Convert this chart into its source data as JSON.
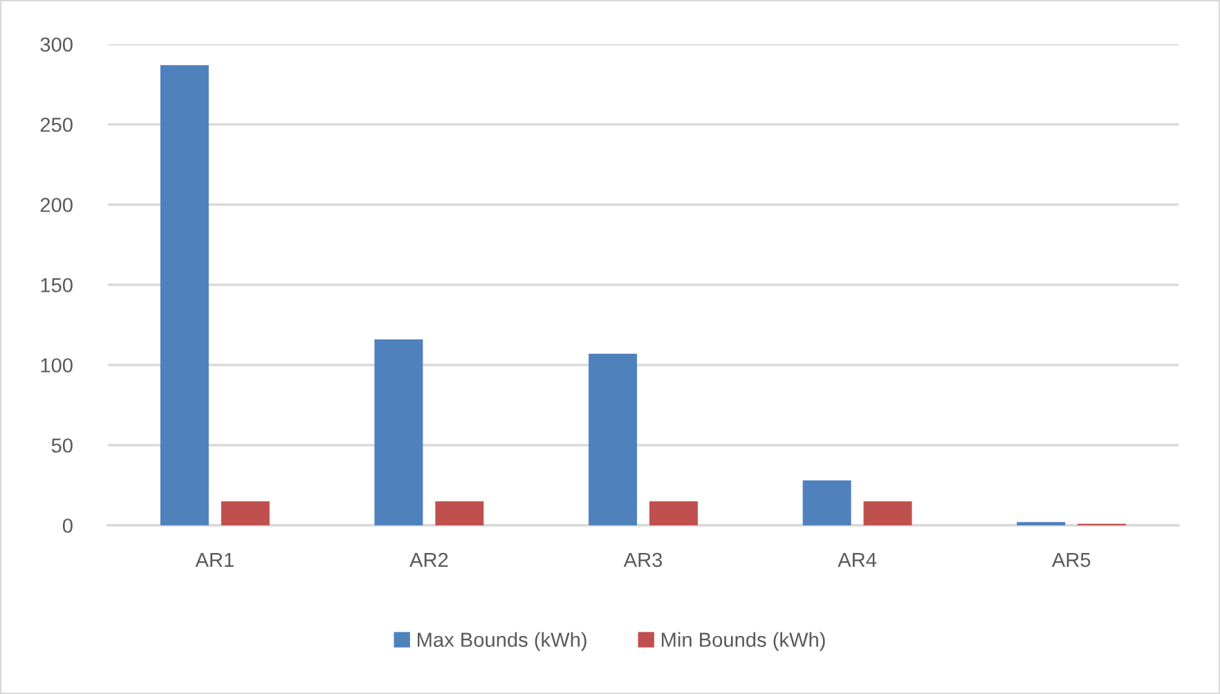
{
  "chart_data": {
    "type": "bar",
    "categories": [
      "AR1",
      "AR2",
      "AR3",
      "AR4",
      "AR5"
    ],
    "series": [
      {
        "name": "Max Bounds (kWh)",
        "color": "#4f81bd",
        "values": [
          287,
          116,
          107,
          28,
          2
        ]
      },
      {
        "name": "Min Bounds (kWh)",
        "color": "#c0504d",
        "values": [
          15,
          15,
          15,
          15,
          1
        ]
      }
    ],
    "ylim": [
      0,
      300
    ],
    "yticks": [
      0,
      50,
      100,
      150,
      200,
      250,
      300
    ],
    "grid": "y",
    "legend": "bottom"
  }
}
